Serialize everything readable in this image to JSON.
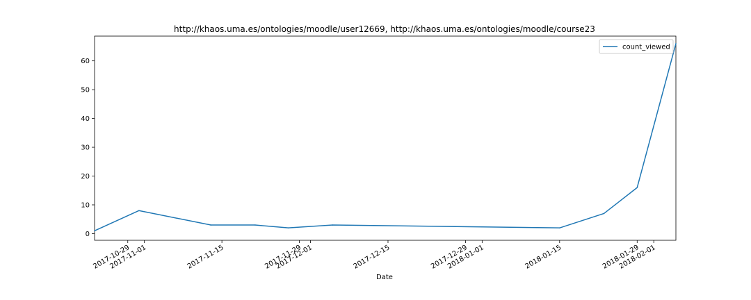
{
  "chart_data": {
    "type": "line",
    "title": "http://khaos.uma.es/ontologies/moodle/user12669, http://khaos.uma.es/ontologies/moodle/course23",
    "xlabel": "Date",
    "ylabel": "",
    "xlim": [
      "2017-10-23",
      "2018-02-05"
    ],
    "ylim": [
      -2.3,
      68.6
    ],
    "x_ticks": [
      "2017-10-29",
      "2017-11-01",
      "2017-11-15",
      "2017-11-29",
      "2017-12-01",
      "2017-12-15",
      "2017-12-29",
      "2018-01-01",
      "2018-01-15",
      "2018-01-29",
      "2018-02-01"
    ],
    "y_ticks": [
      0,
      10,
      20,
      30,
      40,
      50,
      60
    ],
    "legend": {
      "position": "upper right",
      "entries": [
        "count_viewed"
      ]
    },
    "grid": false,
    "series": [
      {
        "name": "count_viewed",
        "color": "#1f77b4",
        "x": [
          "2017-10-23",
          "2017-10-31",
          "2017-11-13",
          "2017-11-21",
          "2017-11-27",
          "2017-12-05",
          "2018-01-15",
          "2018-01-23",
          "2018-01-29",
          "2018-02-05"
        ],
        "values": [
          1,
          8,
          3,
          3,
          2,
          3,
          2,
          7,
          16,
          66
        ]
      }
    ]
  }
}
